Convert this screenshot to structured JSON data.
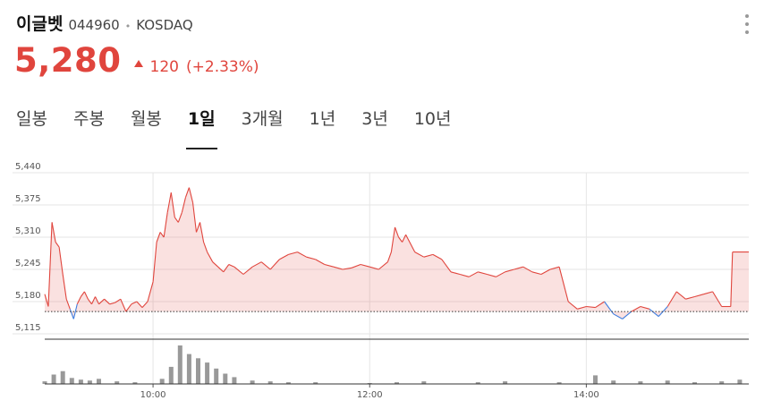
{
  "stock": {
    "name": "이글벳",
    "code": "044960",
    "market": "KOSDAQ"
  },
  "price": {
    "current": "5,280",
    "change": "120",
    "change_pct": "(+2.33%)",
    "up_color": "#e0453d",
    "down_color": "#3d7ee0"
  },
  "tabs": [
    {
      "label": "일봉",
      "active": false
    },
    {
      "label": "주봉",
      "active": false
    },
    {
      "label": "월봉",
      "active": false
    },
    {
      "label": "1일",
      "active": true
    },
    {
      "label": "3개월",
      "active": false
    },
    {
      "label": "1년",
      "active": false
    },
    {
      "label": "3년",
      "active": false
    },
    {
      "label": "10년",
      "active": false
    }
  ],
  "chart_data": {
    "type": "area",
    "y_ticks": [
      "5,440",
      "5,375",
      "5,310",
      "5,245",
      "5,180",
      "5,115"
    ],
    "x_ticks": [
      "10:00",
      "12:00",
      "14:00"
    ],
    "ylim": [
      5115,
      5440
    ],
    "xlim": [
      "09:00",
      "15:30"
    ],
    "prev_close": 5160,
    "price_series": {
      "x": [
        "09:00",
        "09:02",
        "09:04",
        "09:06",
        "09:08",
        "09:10",
        "09:12",
        "09:14",
        "09:16",
        "09:18",
        "09:20",
        "09:22",
        "09:24",
        "09:26",
        "09:28",
        "09:30",
        "09:33",
        "09:36",
        "09:39",
        "09:42",
        "09:45",
        "09:48",
        "09:51",
        "09:54",
        "09:57",
        "10:00",
        "10:02",
        "10:04",
        "10:06",
        "10:08",
        "10:10",
        "10:12",
        "10:14",
        "10:16",
        "10:18",
        "10:20",
        "10:22",
        "10:24",
        "10:26",
        "10:28",
        "10:30",
        "10:33",
        "10:36",
        "10:39",
        "10:42",
        "10:45",
        "10:50",
        "10:55",
        "11:00",
        "11:05",
        "11:10",
        "11:15",
        "11:20",
        "11:25",
        "11:30",
        "11:35",
        "11:40",
        "11:45",
        "11:50",
        "11:55",
        "12:00",
        "12:05",
        "12:10",
        "12:12",
        "12:14",
        "12:16",
        "12:18",
        "12:20",
        "12:25",
        "12:30",
        "12:35",
        "12:40",
        "12:45",
        "12:50",
        "12:55",
        "13:00",
        "13:05",
        "13:10",
        "13:15",
        "13:20",
        "13:25",
        "13:30",
        "13:35",
        "13:40",
        "13:45",
        "13:50",
        "13:55",
        "14:00",
        "14:05",
        "14:10",
        "14:15",
        "14:20",
        "14:25",
        "14:30",
        "14:35",
        "14:40",
        "14:45",
        "14:50",
        "14:55",
        "15:00",
        "15:05",
        "15:10",
        "15:15",
        "15:20",
        "15:21",
        "15:30"
      ],
      "values": [
        5195,
        5170,
        5340,
        5300,
        5290,
        5235,
        5185,
        5165,
        5145,
        5175,
        5190,
        5200,
        5185,
        5175,
        5190,
        5175,
        5185,
        5175,
        5178,
        5185,
        5160,
        5175,
        5180,
        5168,
        5180,
        5220,
        5300,
        5320,
        5310,
        5360,
        5400,
        5350,
        5340,
        5360,
        5390,
        5410,
        5380,
        5320,
        5340,
        5300,
        5280,
        5260,
        5250,
        5240,
        5255,
        5250,
        5235,
        5250,
        5260,
        5245,
        5265,
        5275,
        5280,
        5270,
        5265,
        5255,
        5250,
        5245,
        5248,
        5255,
        5250,
        5245,
        5260,
        5280,
        5330,
        5310,
        5300,
        5315,
        5280,
        5270,
        5275,
        5265,
        5240,
        5235,
        5230,
        5240,
        5235,
        5230,
        5240,
        5245,
        5250,
        5240,
        5235,
        5245,
        5250,
        5180,
        5165,
        5170,
        5168,
        5180,
        5155,
        5145,
        5160,
        5170,
        5165,
        5150,
        5170,
        5200,
        5185,
        5190,
        5195,
        5200,
        5170,
        5170,
        5280,
        5280
      ]
    },
    "volume_series": {
      "x": [
        "09:00",
        "09:05",
        "09:10",
        "09:15",
        "09:20",
        "09:25",
        "09:30",
        "09:40",
        "09:50",
        "10:05",
        "10:10",
        "10:15",
        "10:20",
        "10:25",
        "10:30",
        "10:35",
        "10:40",
        "10:45",
        "10:55",
        "11:05",
        "11:15",
        "11:30",
        "12:00",
        "12:15",
        "12:30",
        "13:00",
        "13:15",
        "13:45",
        "14:05",
        "14:15",
        "14:30",
        "14:45",
        "15:00",
        "15:15",
        "15:25"
      ],
      "values": [
        3,
        11,
        15,
        7,
        5,
        4,
        6,
        3,
        2,
        6,
        20,
        45,
        35,
        30,
        25,
        18,
        12,
        8,
        4,
        3,
        2,
        2,
        1,
        2,
        3,
        2,
        3,
        2,
        10,
        4,
        3,
        4,
        2,
        3,
        5
      ]
    }
  }
}
